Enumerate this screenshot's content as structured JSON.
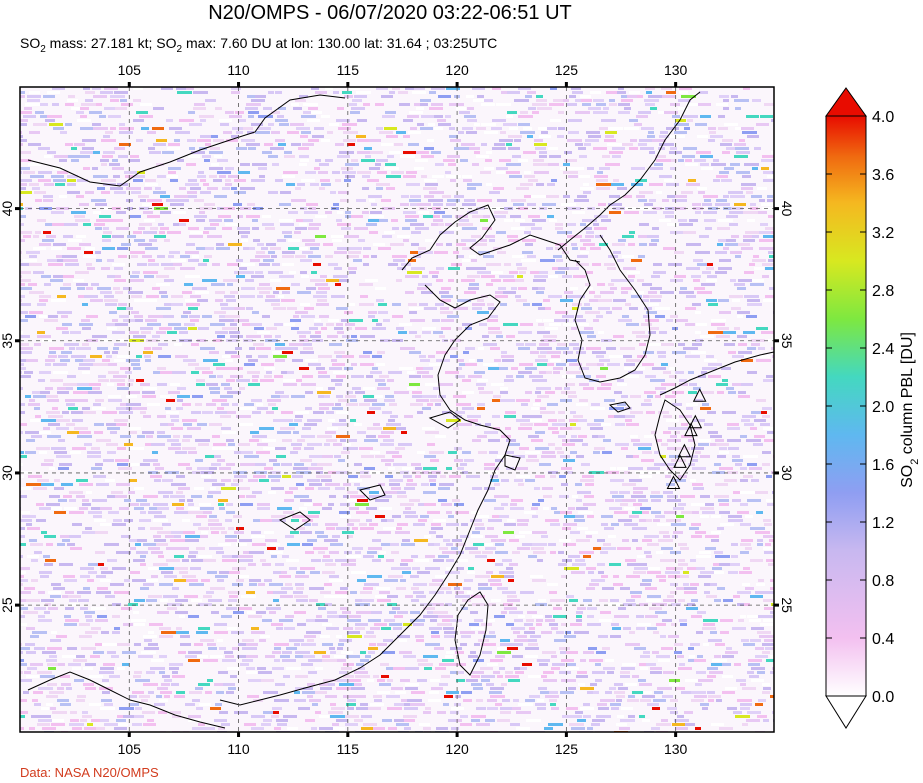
{
  "title": "N20/OMPS - 06/07/2020 03:22-06:51 UT",
  "subtitle_parts": {
    "a": "SO",
    "a_sub": "2",
    "b": " mass: 27.181 kt; SO",
    "b_sub": "2",
    "c": " max: 7.60 DU at lon: 130.00 lat: 31.64 ; 03:25UTC"
  },
  "credit": "Data: NASA N20/OMPS",
  "map": {
    "lon_range": [
      100,
      134.5
    ],
    "lat_range": [
      20.2,
      44.6
    ],
    "lon_ticks": [
      105,
      110,
      115,
      120,
      125,
      130
    ],
    "lat_ticks": [
      25,
      30,
      35,
      40
    ],
    "lon_labels": [
      "105",
      "110",
      "115",
      "120",
      "125",
      "130"
    ],
    "lat_labels": [
      "25",
      "30",
      "35",
      "40"
    ],
    "grid": true,
    "volcano_markers": [
      {
        "lon": 131.1,
        "lat": 32.9
      },
      {
        "lon": 130.9,
        "lat": 31.9
      },
      {
        "lon": 130.7,
        "lat": 31.6
      },
      {
        "lon": 130.4,
        "lat": 30.8
      },
      {
        "lon": 130.2,
        "lat": 30.4
      },
      {
        "lon": 129.9,
        "lat": 29.6
      }
    ]
  },
  "colorbar": {
    "label_main": "SO",
    "label_sub": "2",
    "label_rest": " column PBL [DU]",
    "ticks": [
      "4.0",
      "3.6",
      "3.2",
      "2.8",
      "2.4",
      "2.0",
      "1.6",
      "1.2",
      "0.8",
      "0.4",
      "0.0"
    ],
    "min": 0.0,
    "max": 4.0,
    "colors": [
      "#ffffff",
      "#f3c0f0",
      "#c8b8f0",
      "#8f9ef2",
      "#5fb8f0",
      "#44d8c0",
      "#7ee840",
      "#d8e820",
      "#f5b820",
      "#f06a10",
      "#e80c00"
    ]
  }
}
